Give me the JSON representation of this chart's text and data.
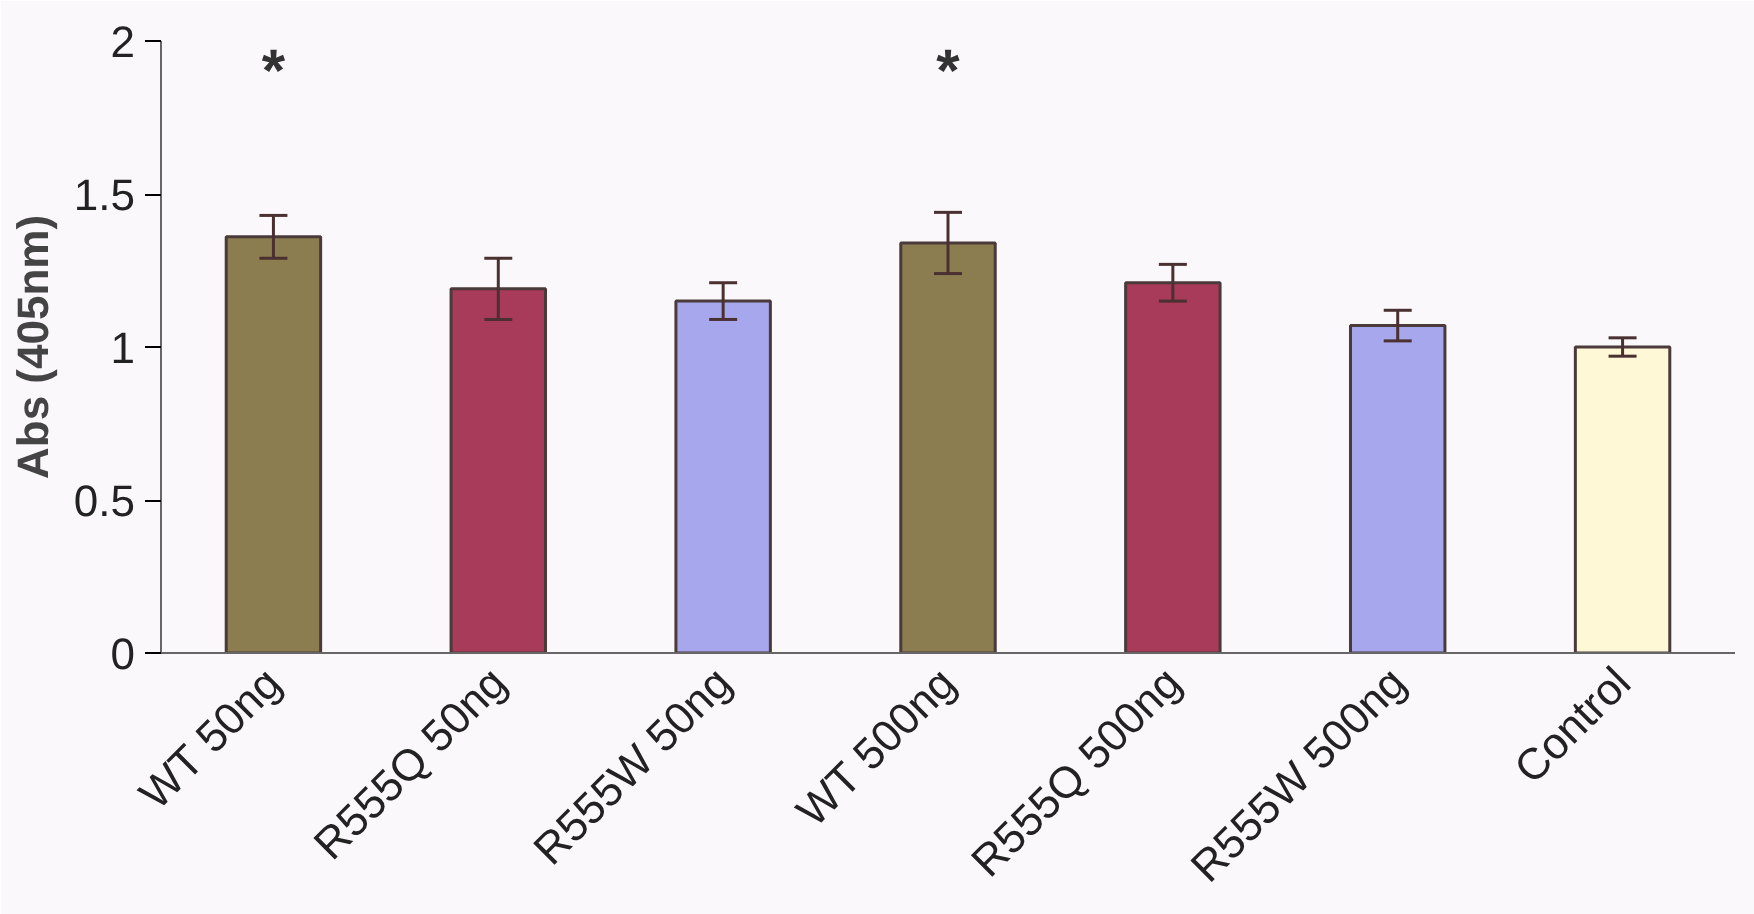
{
  "chart_data": {
    "type": "bar",
    "ylabel": "Abs (405nm)",
    "categories": [
      "WT 50ng",
      "R555Q 50ng",
      "R555W 50ng",
      "WT 500ng",
      "R555Q 500ng",
      "R555W 500ng",
      "Control"
    ],
    "values": [
      1.36,
      1.19,
      1.15,
      1.34,
      1.21,
      1.07,
      1.0
    ],
    "errors": [
      0.07,
      0.1,
      0.06,
      0.1,
      0.06,
      0.05,
      0.03
    ],
    "colors": [
      "#8b7d4f",
      "#a83a5a",
      "#a7a7ee",
      "#8b7d4f",
      "#a83a5a",
      "#a7a7ee",
      "#fff8d6"
    ],
    "ylim": [
      0,
      2
    ],
    "yticks": [
      0,
      0.5,
      1,
      1.5,
      2
    ],
    "grid": false,
    "annotations": [
      "*",
      "*"
    ]
  }
}
